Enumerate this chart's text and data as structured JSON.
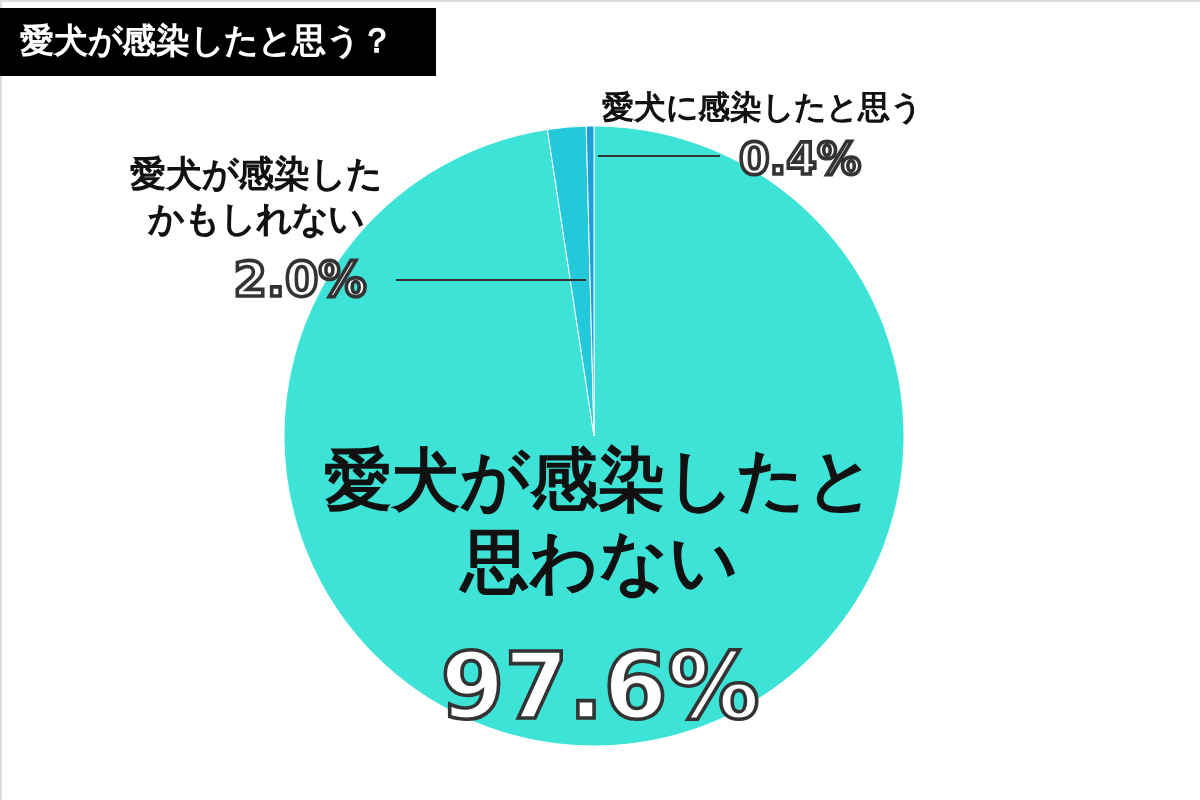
{
  "chart_data": {
    "type": "pie",
    "title": "愛犬が感染したと思う？",
    "categories": [
      "愛犬が感染したと思わない",
      "愛犬が感染したかもしれない",
      "愛犬に感染したと思う"
    ],
    "values": [
      97.6,
      2.0,
      0.4
    ],
    "value_labels": [
      "97.6%",
      "2.0%",
      "0.4%"
    ],
    "colors": [
      "#3ee3d7",
      "#22c9da",
      "#1a9fd8"
    ]
  }
}
